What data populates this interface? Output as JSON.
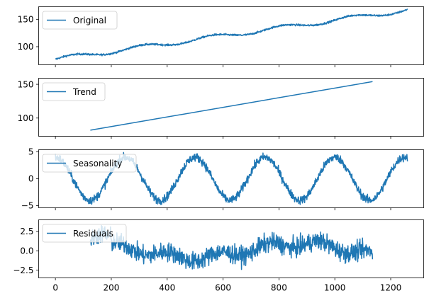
{
  "chart_data": [
    {
      "type": "line",
      "name": "original",
      "legend": "Original",
      "color": "#1f77b4",
      "xlim": [
        -60,
        1318
      ],
      "ylim": [
        67,
        173
      ],
      "yticks": [
        100,
        150
      ],
      "x_start": 0,
      "x_end": 1260,
      "model": {
        "kind": "trend_season",
        "trend_start": 77,
        "trend_end": 167,
        "season_amp": 4,
        "season_period": 250,
        "season_phase": 0,
        "noise": 1.2
      }
    },
    {
      "type": "line",
      "name": "trend",
      "legend": "Trend",
      "color": "#1f77b4",
      "xlim": [
        -60,
        1318
      ],
      "ylim": [
        73,
        159
      ],
      "yticks": [
        100,
        150
      ],
      "x": [
        125,
        1135
      ],
      "y": [
        82,
        154
      ]
    },
    {
      "type": "line",
      "name": "seasonality",
      "legend": "Seasonality",
      "color": "#1f77b4",
      "xlim": [
        -60,
        1318
      ],
      "ylim": [
        -5.4,
        5.4
      ],
      "yticks": [
        -5,
        0,
        5
      ],
      "x_start": 0,
      "x_end": 1260,
      "model": {
        "kind": "sine",
        "amp": 4,
        "period": 250,
        "phase": 0.25,
        "noise": 0.55
      }
    },
    {
      "type": "line",
      "name": "residuals",
      "legend": "Residuals",
      "color": "#1f77b4",
      "xlim": [
        -60,
        1318
      ],
      "ylim": [
        -3.5,
        4.0
      ],
      "yticks": [
        -2.5,
        0.0,
        2.5
      ],
      "x_start": 125,
      "x_end": 1135,
      "model": {
        "kind": "residual",
        "noise": 0.85
      }
    }
  ],
  "x_axis": {
    "ticks": [
      0,
      200,
      400,
      600,
      800,
      1000,
      1200
    ]
  },
  "tick_labels": {
    "original_y": [
      "100",
      "150"
    ],
    "trend_y": [
      "100",
      "150"
    ],
    "seasonality_y": [
      "−5",
      "0",
      "5"
    ],
    "residuals_y": [
      "−2.5",
      "0.0",
      "2.5"
    ],
    "x": [
      "0",
      "200",
      "400",
      "600",
      "800",
      "1000",
      "1200"
    ]
  }
}
